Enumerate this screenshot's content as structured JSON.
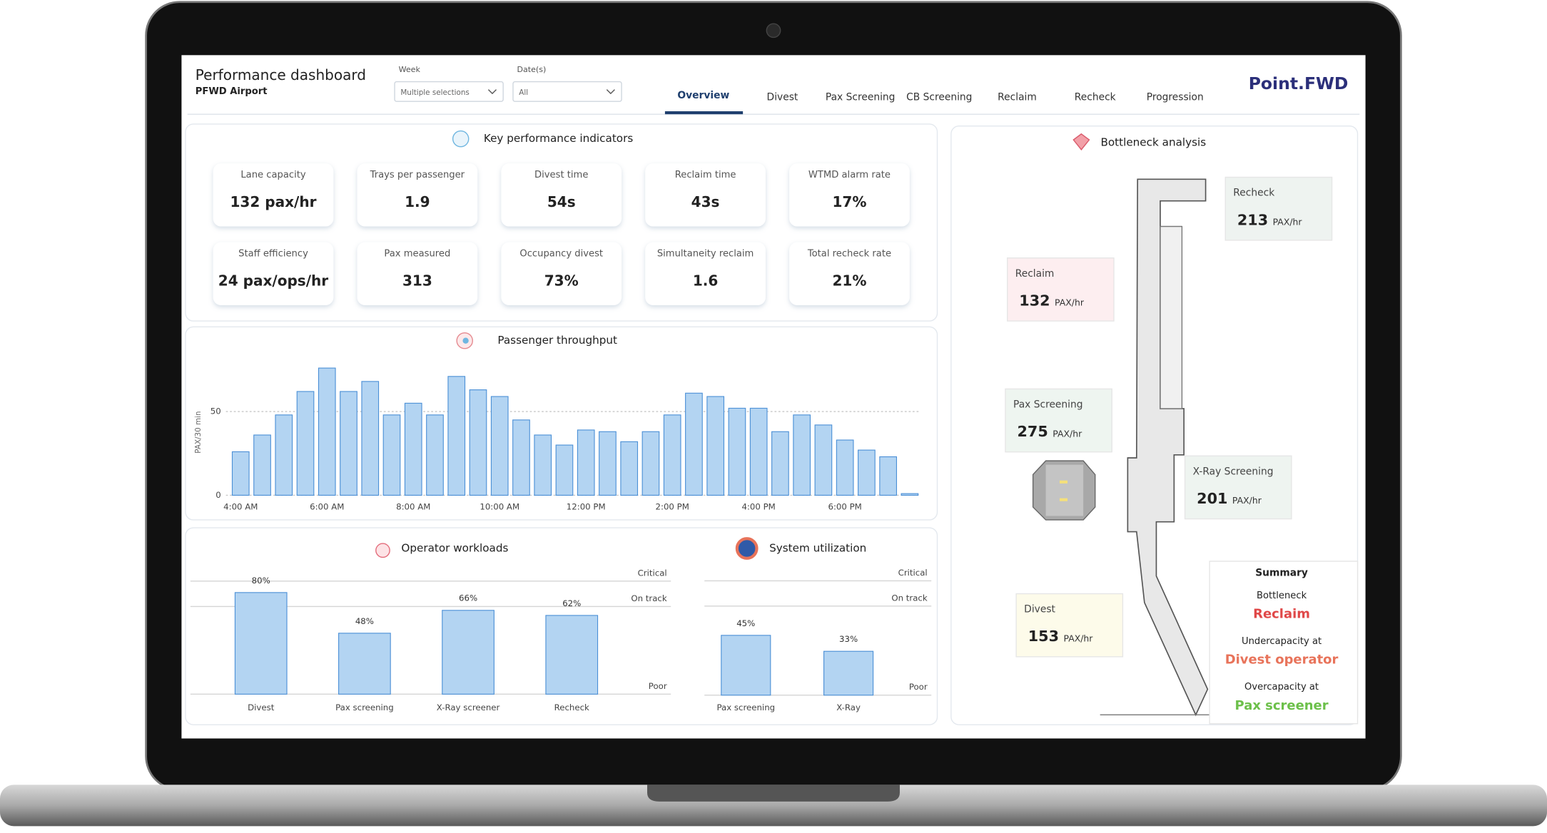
{
  "header": {
    "title": "Performance dashboard",
    "subtitle": "PFWD Airport",
    "filters": [
      {
        "label": "Week",
        "value": "Multiple selections"
      },
      {
        "label": "Date(s)",
        "value": "All"
      }
    ],
    "tabs": [
      "Overview",
      "Divest",
      "Pax Screening",
      "CB Screening",
      "Reclaim",
      "Recheck",
      "Progression"
    ],
    "active_tab": 0,
    "brand": "Point.FWD"
  },
  "kpis": {
    "title": "Key performance indicators",
    "items": [
      {
        "label": "Lane capacity",
        "value": "132 pax/hr"
      },
      {
        "label": "Trays per passenger",
        "value": "1.9"
      },
      {
        "label": "Divest time",
        "value": "54s"
      },
      {
        "label": "Reclaim time",
        "value": "43s"
      },
      {
        "label": "WTMD alarm rate",
        "value": "17%"
      },
      {
        "label": "Staff efficiency",
        "value": "24 pax/ops/hr"
      },
      {
        "label": "Pax measured",
        "value": "313"
      },
      {
        "label": "Occupancy divest",
        "value": "73%"
      },
      {
        "label": "Simultaneity reclaim",
        "value": "1.6"
      },
      {
        "label": "Total recheck rate",
        "value": "21%"
      }
    ]
  },
  "chart_data": [
    {
      "type": "bar",
      "title": "Passenger throughput",
      "y_label": "PAX/30 min",
      "categories": [
        "4:00 AM",
        null,
        null,
        null,
        "6:00 AM",
        null,
        null,
        null,
        "8:00 AM",
        null,
        null,
        null,
        "10:00 AM",
        null,
        null,
        null,
        "12:00 PM",
        null,
        null,
        null,
        "2:00 PM",
        null,
        null,
        null,
        "4:00 PM",
        null,
        null,
        null,
        "6:00 PM",
        null,
        null,
        null
      ],
      "values": [
        26,
        36,
        48,
        62,
        76,
        62,
        68,
        48,
        55,
        48,
        71,
        63,
        59,
        45,
        36,
        30,
        39,
        38,
        32,
        38,
        48,
        61,
        59,
        52,
        52,
        38,
        48,
        42,
        33,
        27,
        23,
        1
      ],
      "color": "#b3d4f2",
      "ylim": [
        0,
        80
      ],
      "yticks": [
        0,
        50
      ],
      "grid": true
    },
    {
      "type": "bar",
      "title": "Operator workloads",
      "categories": [
        "Divest",
        "Pax screening",
        "X-Ray screener",
        "Recheck"
      ],
      "values": [
        80,
        48,
        66,
        62
      ],
      "value_labels": [
        "80%",
        "48%",
        "66%",
        "62%"
      ],
      "color": "#b3d4f2",
      "ylim": [
        0,
        100
      ],
      "thresholds": [
        {
          "label": "Critical",
          "value": 89
        },
        {
          "label": "On track",
          "value": 69
        },
        {
          "label": "Poor",
          "value": 0
        }
      ]
    },
    {
      "type": "bar",
      "title": "System utilization",
      "categories": [
        "Pax screening",
        "X-Ray"
      ],
      "values": [
        45,
        33
      ],
      "value_labels": [
        "45%",
        "33%"
      ],
      "color": "#b3d4f2",
      "ylim": [
        0,
        100
      ],
      "thresholds": [
        {
          "label": "Critical",
          "value": 86
        },
        {
          "label": "On track",
          "value": 67
        },
        {
          "label": "Poor",
          "value": 0
        }
      ]
    }
  ],
  "bottleneck": {
    "title": "Bottleneck analysis",
    "stages": [
      {
        "name": "Recheck",
        "value": 213,
        "unit": "PAX/hr",
        "color": "#eef3f0"
      },
      {
        "name": "Reclaim",
        "value": 132,
        "unit": "PAX/hr",
        "color": "#fdeef0"
      },
      {
        "name": "Pax Screening",
        "value": 275,
        "unit": "PAX/hr",
        "color": "#eef5f0"
      },
      {
        "name": "X-Ray Screening",
        "value": 201,
        "unit": "PAX/hr",
        "color": "#eef4f0"
      },
      {
        "name": "Divest",
        "value": 153,
        "unit": "PAX/hr",
        "color": "#fdfbea"
      }
    ],
    "summary": {
      "title": "Summary",
      "items": [
        {
          "label": "Bottleneck",
          "value": "Reclaim",
          "color": "#e04848"
        },
        {
          "label": "Undercapacity at",
          "value": "Divest operator",
          "color": "#e8735a"
        },
        {
          "label": "Overcapacity at",
          "value": "Pax screener",
          "color": "#6cc04a"
        }
      ]
    }
  }
}
